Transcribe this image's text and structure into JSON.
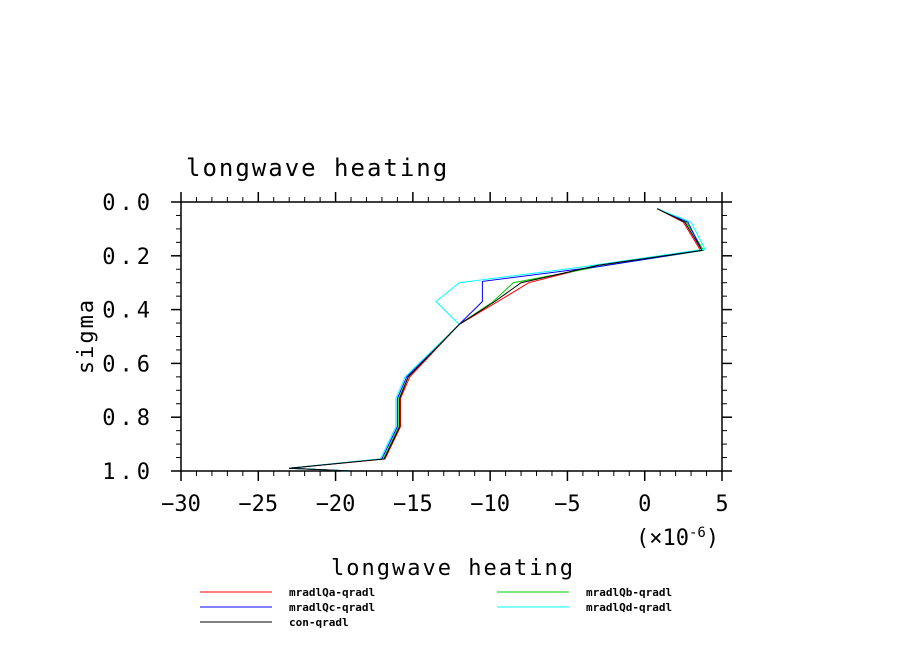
{
  "chart_data": {
    "type": "line",
    "title": "longwave heating",
    "xlabel": "longwave heating",
    "ylabel": "sigma",
    "x_scale_label": "(×10",
    "x_scale_exponent": "-6",
    "x_scale_close": ")",
    "xlim": [
      -30,
      5
    ],
    "ylim": [
      0.0,
      1.0
    ],
    "y_inverted": true,
    "x_ticks": [
      "−30",
      "−25",
      "−20",
      "−15",
      "−10",
      "−5",
      "0",
      "5"
    ],
    "x_tick_values": [
      -30,
      -25,
      -20,
      -15,
      -10,
      -5,
      0,
      5
    ],
    "y_ticks": [
      "0.0",
      "0.2",
      "0.4",
      "0.6",
      "0.8",
      "1.0"
    ],
    "y_tick_values": [
      0.0,
      0.2,
      0.4,
      0.6,
      0.8,
      1.0
    ],
    "grid": false,
    "legend_position": "bottom",
    "series": [
      {
        "name": "mradlQa-qradl",
        "color": "#ff0000",
        "x": [
          0.8,
          2.5,
          3.6,
          -3.0,
          -7.5,
          -9.5,
          -12.0,
          -15.2,
          -15.8,
          -15.8,
          -16.8,
          -23.0,
          -19.0
        ],
        "y": [
          0.025,
          0.075,
          0.18,
          0.235,
          0.3,
          0.37,
          0.455,
          0.65,
          0.73,
          0.835,
          0.955,
          0.99,
          1.0
        ]
      },
      {
        "name": "mradlQb-qradl",
        "color": "#00cc00",
        "x": [
          0.8,
          2.7,
          3.8,
          -3.0,
          -8.5,
          -9.8,
          -12.0,
          -15.3,
          -15.9,
          -15.9,
          -16.9,
          -23.0,
          -19.0
        ],
        "y": [
          0.025,
          0.075,
          0.18,
          0.24,
          0.3,
          0.37,
          0.455,
          0.65,
          0.73,
          0.835,
          0.955,
          0.99,
          1.0
        ]
      },
      {
        "name": "mradlQc-qradl",
        "color": "#0000ff",
        "x": [
          0.8,
          2.8,
          3.7,
          -3.0,
          -10.5,
          -10.5,
          -12.0,
          -15.4,
          -16.0,
          -16.0,
          -17.0,
          -23.0,
          -19.0
        ],
        "y": [
          0.025,
          0.075,
          0.18,
          0.24,
          0.295,
          0.37,
          0.455,
          0.65,
          0.73,
          0.835,
          0.955,
          0.99,
          1.0
        ]
      },
      {
        "name": "mradlQd-qradl",
        "color": "#00ffff",
        "x": [
          0.8,
          3.0,
          3.9,
          -4.5,
          -12.0,
          -13.5,
          -12.0,
          -15.5,
          -16.1,
          -16.1,
          -17.1,
          -23.0,
          -19.0
        ],
        "y": [
          0.025,
          0.075,
          0.175,
          0.245,
          0.3,
          0.37,
          0.455,
          0.65,
          0.73,
          0.835,
          0.955,
          0.99,
          1.0
        ]
      },
      {
        "name": "con-qradl",
        "color": "#000000",
        "x": [
          0.8,
          2.6,
          3.7,
          -3.0,
          -8.0,
          -9.7,
          -12.0,
          -15.3,
          -15.85,
          -15.85,
          -16.85,
          -23.0,
          -19.0
        ],
        "y": [
          0.025,
          0.075,
          0.18,
          0.235,
          0.3,
          0.37,
          0.455,
          0.65,
          0.73,
          0.835,
          0.955,
          0.99,
          1.0
        ]
      }
    ]
  }
}
